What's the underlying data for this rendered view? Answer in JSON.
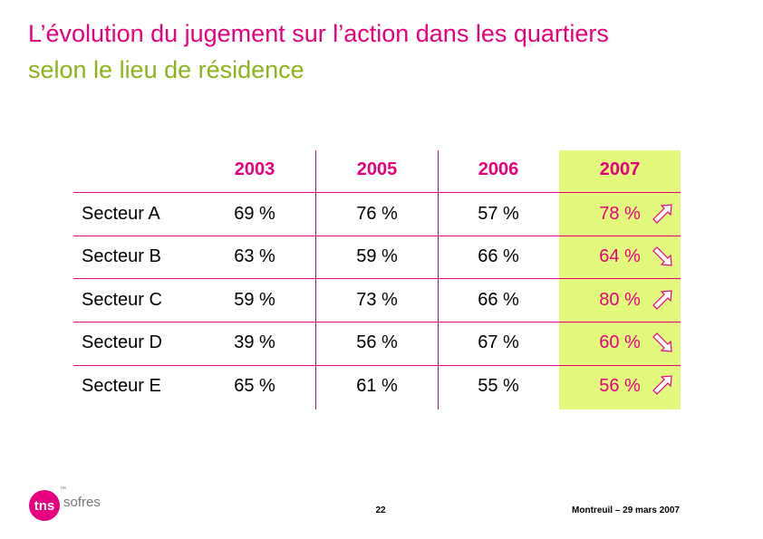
{
  "title": {
    "line1": "L’évolution du jugement sur l’action dans les quartiers",
    "line2": "selon le lieu de résidence"
  },
  "table": {
    "years": [
      "2003",
      "2005",
      "2006",
      "2007"
    ],
    "rows": [
      {
        "label": "Secteur A",
        "values": [
          "69 %",
          "76 %",
          "57 %",
          "78 %"
        ],
        "trend": "up"
      },
      {
        "label": "Secteur B",
        "values": [
          "63 %",
          "59 %",
          "66 %",
          "64 %"
        ],
        "trend": "down"
      },
      {
        "label": "Secteur C",
        "values": [
          "59 %",
          "73 %",
          "66 %",
          "80 %"
        ],
        "trend": "up"
      },
      {
        "label": "Secteur D",
        "values": [
          "39 %",
          "56 %",
          "67 %",
          "60 %"
        ],
        "trend": "down"
      },
      {
        "label": "Secteur E",
        "values": [
          "65 %",
          "61 %",
          "55 %",
          "56 %"
        ],
        "trend": "up"
      }
    ]
  },
  "colors": {
    "title_primary": "#e6007e",
    "title_secondary": "#8db31a",
    "highlight": "#e2f97e"
  },
  "footer": {
    "logo_main": "tns",
    "logo_sub": "sofres",
    "logo_tm": "™",
    "page_number": "22",
    "date_place": "Montreuil – 29 mars 2007"
  }
}
